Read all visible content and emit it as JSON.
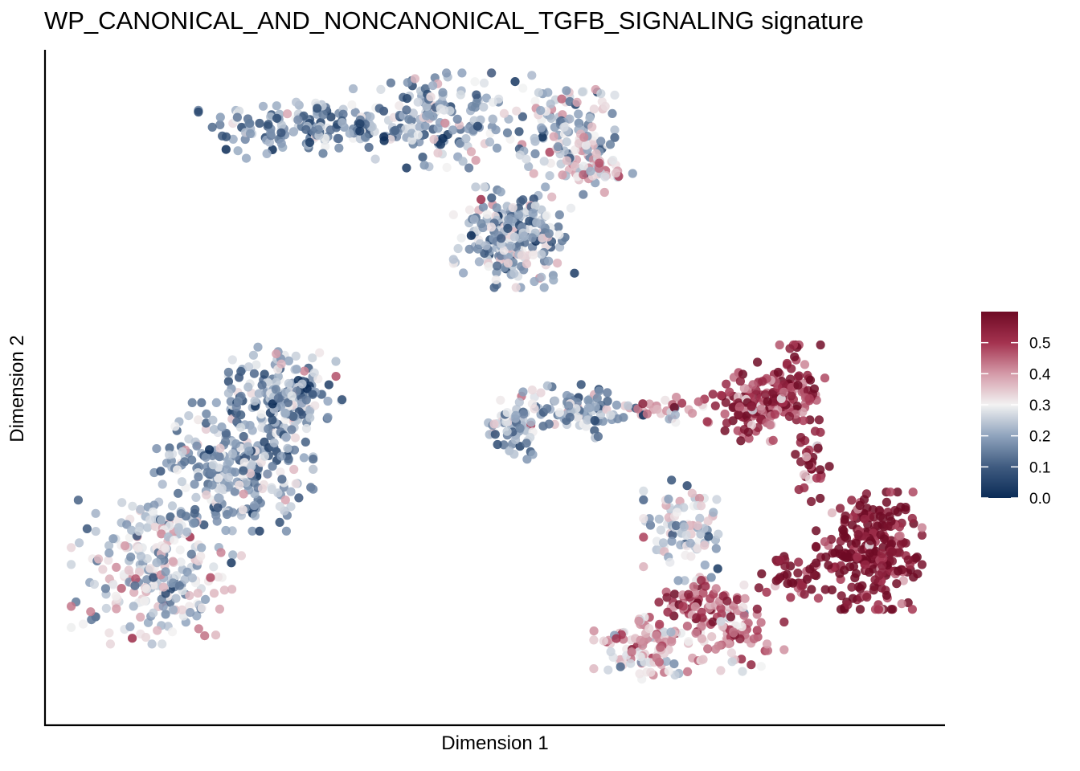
{
  "chart_data": {
    "type": "scatter",
    "title": "WP_CANONICAL_AND_NONCANONICAL_TGFB_SIGNALING signature",
    "xlabel": "Dimension 1",
    "ylabel": "Dimension 2",
    "axis_ticks": "none",
    "grid": false,
    "legend": {
      "position": "right",
      "type": "colorbar",
      "ticks": [
        "0.0",
        "0.1",
        "0.2",
        "0.3",
        "0.4",
        "0.5"
      ],
      "range": [
        0.0,
        0.6
      ]
    },
    "color_scale": {
      "low": "#053061",
      "mid": "#f7f7f7",
      "high": "#67001f",
      "stops": [
        {
          "value": 0.0,
          "color": "#0b2c57"
        },
        {
          "value": 0.1,
          "color": "#3f5b80"
        },
        {
          "value": 0.2,
          "color": "#8fa3bd"
        },
        {
          "value": 0.3,
          "color": "#f2f2f2"
        },
        {
          "value": 0.4,
          "color": "#d49aa8"
        },
        {
          "value": 0.5,
          "color": "#a4324f"
        },
        {
          "value": 0.6,
          "color": "#6e0a24"
        }
      ]
    },
    "xlim": [
      0,
      100
    ],
    "ylim": [
      0,
      100
    ],
    "clusters": [
      {
        "cx": 27.7,
        "cy": 91.4,
        "sx": 5.5,
        "sy": 2.3,
        "n": 150,
        "mean": 0.18
      },
      {
        "cx": 43.5,
        "cy": 92.4,
        "sx": 4.5,
        "sy": 3.4,
        "n": 180,
        "mean": 0.2
      },
      {
        "cx": 58.3,
        "cy": 91.6,
        "sx": 2.6,
        "sy": 3.6,
        "n": 120,
        "mean": 0.24
      },
      {
        "cx": 61.3,
        "cy": 84.8,
        "sx": 2.2,
        "sy": 2.3,
        "n": 60,
        "mean": 0.33
      },
      {
        "cx": 52.3,
        "cy": 74.0,
        "sx": 3.2,
        "sy": 3.6,
        "n": 240,
        "mean": 0.22
      },
      {
        "cx": 25.7,
        "cy": 49.2,
        "sx": 3.0,
        "sy": 3.4,
        "n": 200,
        "mean": 0.2
      },
      {
        "cx": 19.7,
        "cy": 37.8,
        "sx": 4.2,
        "sy": 4.6,
        "n": 260,
        "mean": 0.2
      },
      {
        "cx": 10.7,
        "cy": 22.2,
        "sx": 4.5,
        "sy": 5.6,
        "n": 260,
        "mean": 0.27
      },
      {
        "cx": 52.3,
        "cy": 44.2,
        "sx": 1.6,
        "sy": 2.6,
        "n": 60,
        "mean": 0.22
      },
      {
        "cx": 60.3,
        "cy": 46.6,
        "sx": 3.2,
        "sy": 1.9,
        "n": 100,
        "mean": 0.19
      },
      {
        "cx": 70.3,
        "cy": 46.8,
        "sx": 2.1,
        "sy": 0.9,
        "n": 30,
        "mean": 0.4
      },
      {
        "cx": 80.5,
        "cy": 47.2,
        "sx": 2.6,
        "sy": 2.6,
        "n": 110,
        "mean": 0.5
      },
      {
        "cx": 84.5,
        "cy": 50.2,
        "sx": 1.8,
        "sy": 3.1,
        "n": 80,
        "mean": 0.53
      },
      {
        "cx": 87.0,
        "cy": 38.4,
        "sx": 0.9,
        "sy": 3.1,
        "n": 40,
        "mean": 0.54
      },
      {
        "cx": 93.6,
        "cy": 24.6,
        "sx": 2.8,
        "sy": 4.2,
        "n": 260,
        "mean": 0.58
      },
      {
        "cx": 85.5,
        "cy": 20.4,
        "sx": 2.0,
        "sy": 1.5,
        "n": 40,
        "mean": 0.55
      },
      {
        "cx": 72.2,
        "cy": 27.8,
        "sx": 2.2,
        "sy": 3.6,
        "n": 90,
        "mean": 0.26
      },
      {
        "cx": 78.0,
        "cy": 12.6,
        "sx": 2.6,
        "sy": 3.2,
        "n": 80,
        "mean": 0.42
      },
      {
        "cx": 74.0,
        "cy": 16.0,
        "sx": 2.2,
        "sy": 2.0,
        "n": 60,
        "mean": 0.47
      },
      {
        "cx": 68.4,
        "cy": 9.4,
        "sx": 3.1,
        "sy": 2.3,
        "n": 110,
        "mean": 0.34
      }
    ]
  }
}
